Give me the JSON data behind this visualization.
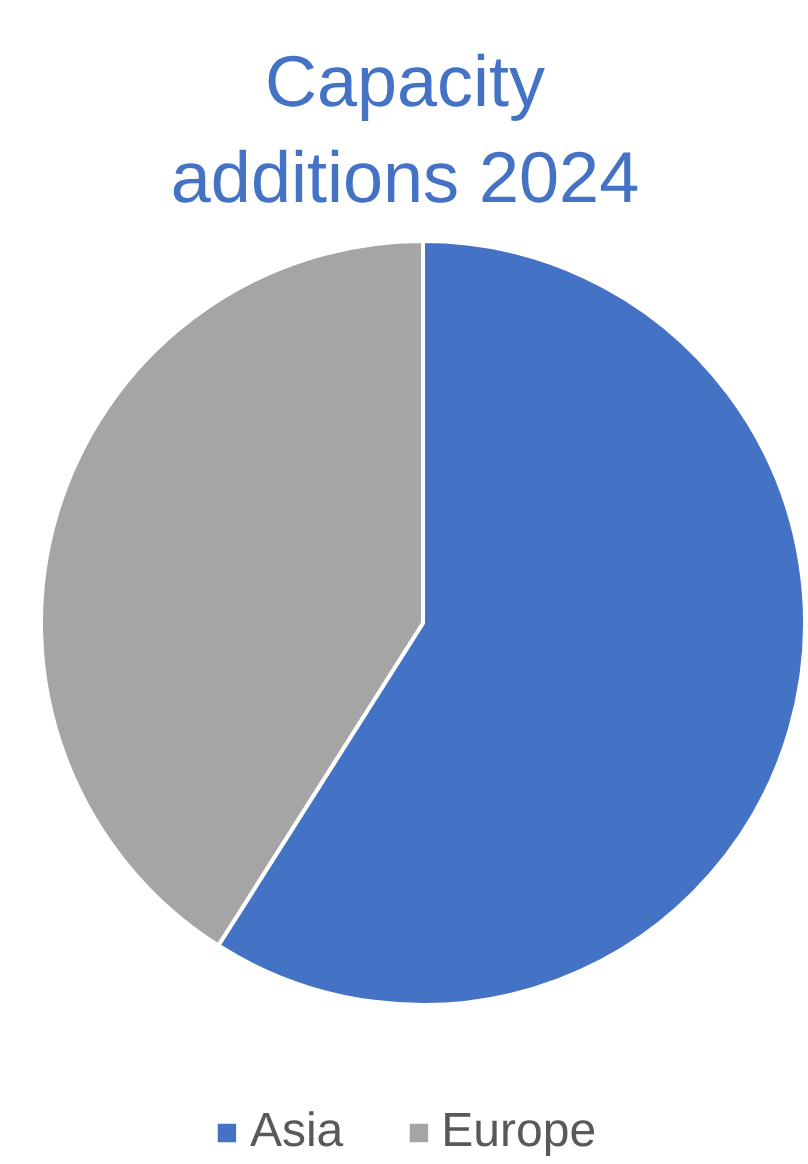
{
  "chart_data": {
    "type": "pie",
    "title": "Capacity additions 2024",
    "categories": [
      "Asia",
      "Europe"
    ],
    "values": [
      59,
      41
    ],
    "colors": [
      "#4472c4",
      "#a5a5a5"
    ],
    "legend": "bottom"
  }
}
